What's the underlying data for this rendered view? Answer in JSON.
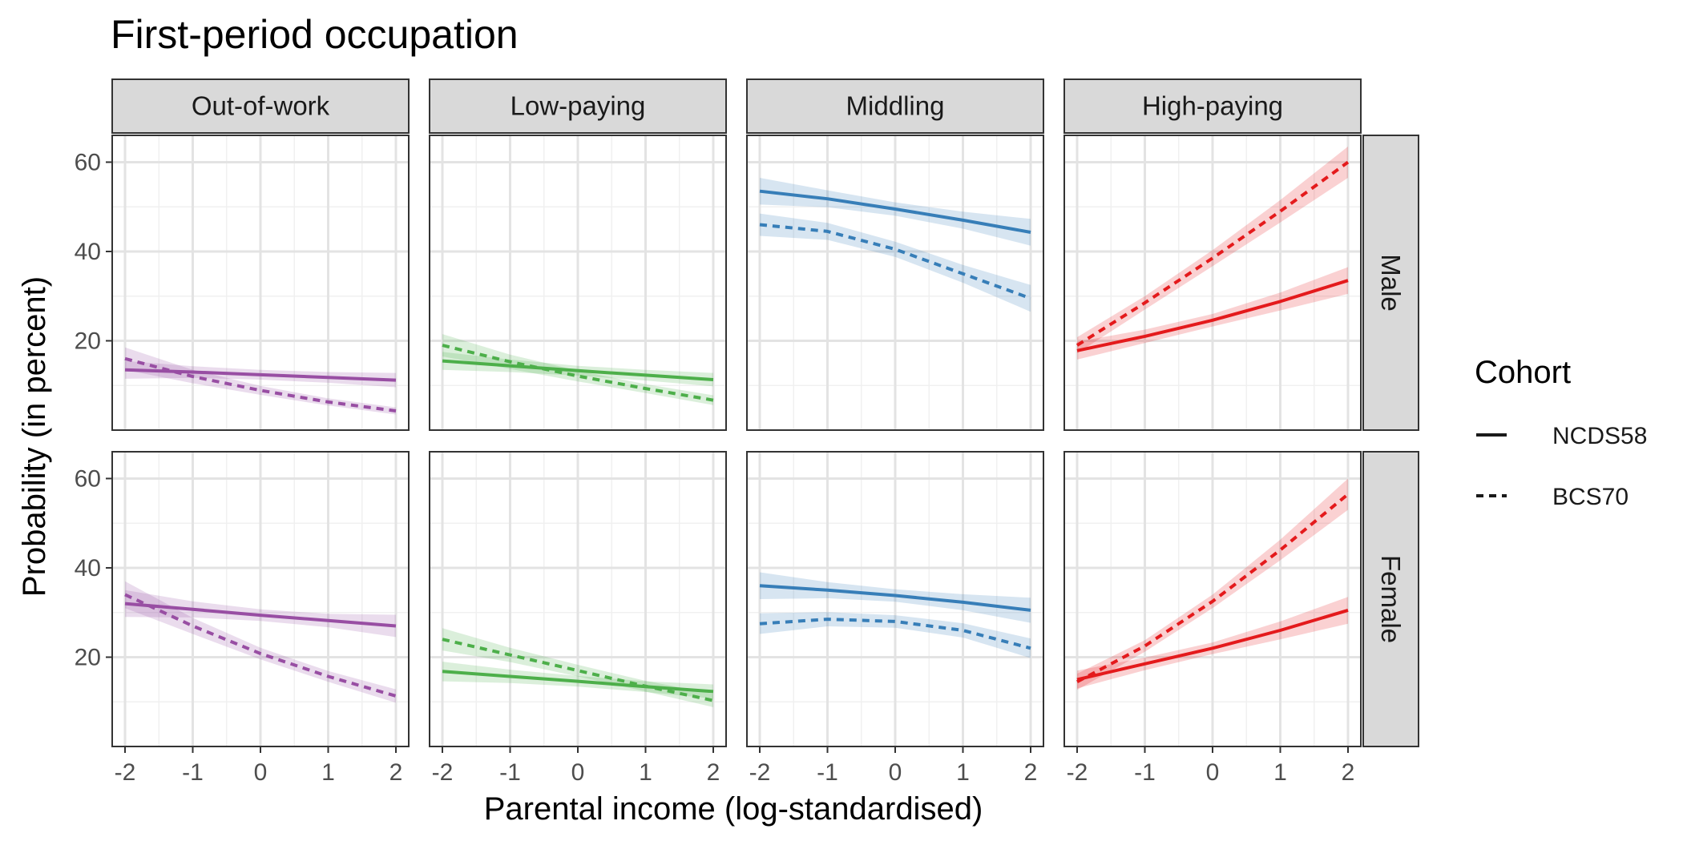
{
  "chart_data": {
    "type": "line",
    "title": "First-period occupation",
    "xlabel": "Parental income (log-standardised)",
    "ylabel": "Probability (in percent)",
    "xlim": [
      -2,
      2
    ],
    "x_ticks": [
      -2,
      -1,
      0,
      1,
      2
    ],
    "ylim": [
      0,
      66
    ],
    "y_ticks": [
      20,
      40,
      60
    ],
    "grid": true,
    "legend": {
      "title": "Cohort",
      "position": "right",
      "entries": [
        {
          "name": "NCDS58",
          "linestyle": "solid"
        },
        {
          "name": "BCS70",
          "linestyle": "dashed"
        }
      ]
    },
    "columns": [
      "Out-of-work",
      "Low-paying",
      "Middling",
      "High-paying"
    ],
    "rows": [
      "Male",
      "Female"
    ],
    "colors": {
      "Out-of-work": "#984ea3",
      "Low-paying": "#4daf4a",
      "Middling": "#377eb8",
      "High-paying": "#e41a1c"
    },
    "x": [
      -2,
      -1,
      0,
      1,
      2
    ],
    "panels": [
      {
        "row": "Male",
        "column": "Out-of-work",
        "series": [
          {
            "name": "NCDS58",
            "values": [
              13.5,
              13.0,
              12.4,
              11.8,
              11.2
            ],
            "ci": [
              2.0,
              1.3,
              1.1,
              1.2,
              1.6
            ]
          },
          {
            "name": "BCS70",
            "values": [
              16.0,
              12.0,
              8.9,
              6.3,
              4.3
            ],
            "ci": [
              2.5,
              1.5,
              1.0,
              0.8,
              0.8
            ]
          }
        ]
      },
      {
        "row": "Male",
        "column": "Low-paying",
        "series": [
          {
            "name": "NCDS58",
            "values": [
              15.5,
              14.4,
              13.3,
              12.3,
              11.3
            ],
            "ci": [
              2.0,
              1.4,
              1.1,
              1.2,
              1.5
            ]
          },
          {
            "name": "BCS70",
            "values": [
              19.0,
              15.3,
              12.1,
              9.3,
              6.7
            ],
            "ci": [
              2.5,
              1.6,
              1.2,
              1.0,
              1.1
            ]
          }
        ]
      },
      {
        "row": "Male",
        "column": "Middling",
        "series": [
          {
            "name": "NCDS58",
            "values": [
              53.5,
              51.8,
              49.5,
              47.0,
              44.3
            ],
            "ci": [
              3.0,
              1.9,
              1.5,
              1.9,
              3.0
            ]
          },
          {
            "name": "BCS70",
            "values": [
              46.0,
              44.5,
              40.5,
              35.0,
              29.5
            ],
            "ci": [
              2.5,
              1.9,
              1.7,
              2.0,
              3.0
            ]
          }
        ]
      },
      {
        "row": "Male",
        "column": "High-paying",
        "series": [
          {
            "name": "NCDS58",
            "values": [
              17.8,
              21.0,
              24.6,
              28.8,
              33.5
            ],
            "ci": [
              2.0,
              1.5,
              1.4,
              2.0,
              3.0
            ]
          },
          {
            "name": "BCS70",
            "values": [
              19.0,
              28.5,
              38.5,
              49.0,
              60.0
            ],
            "ci": [
              1.8,
              1.5,
              1.8,
              2.5,
              3.5
            ]
          }
        ]
      },
      {
        "row": "Female",
        "column": "Out-of-work",
        "series": [
          {
            "name": "NCDS58",
            "values": [
              32.0,
              30.7,
              29.4,
              28.2,
              27.0
            ],
            "ci": [
              3.0,
              1.8,
              1.3,
              1.5,
              2.5
            ]
          },
          {
            "name": "BCS70",
            "values": [
              34.0,
              27.0,
              20.8,
              15.7,
              11.3
            ],
            "ci": [
              3.0,
              1.8,
              1.3,
              1.2,
              1.5
            ]
          }
        ]
      },
      {
        "row": "Female",
        "column": "Low-paying",
        "series": [
          {
            "name": "NCDS58",
            "values": [
              16.8,
              15.7,
              14.6,
              13.4,
              12.3
            ],
            "ci": [
              2.2,
              1.5,
              1.2,
              1.2,
              1.6
            ]
          },
          {
            "name": "BCS70",
            "values": [
              24.0,
              20.5,
              17.0,
              13.5,
              10.3
            ],
            "ci": [
              2.5,
              1.6,
              1.3,
              1.2,
              1.5
            ]
          }
        ]
      },
      {
        "row": "Female",
        "column": "Middling",
        "series": [
          {
            "name": "NCDS58",
            "values": [
              36.0,
              35.0,
              33.8,
              32.3,
              30.5
            ],
            "ci": [
              3.0,
              1.8,
              1.4,
              1.8,
              2.8
            ]
          },
          {
            "name": "BCS70",
            "values": [
              27.5,
              28.5,
              28.0,
              26.0,
              22.0
            ],
            "ci": [
              2.3,
              1.6,
              1.4,
              1.6,
              2.2
            ]
          }
        ]
      },
      {
        "row": "Female",
        "column": "High-paying",
        "series": [
          {
            "name": "NCDS58",
            "values": [
              15.0,
              18.5,
              22.0,
              26.0,
              30.5
            ],
            "ci": [
              2.0,
              1.4,
              1.3,
              2.0,
              3.0
            ]
          },
          {
            "name": "BCS70",
            "values": [
              14.5,
              22.5,
              32.5,
              44.0,
              56.5
            ],
            "ci": [
              1.8,
              1.3,
              1.5,
              2.3,
              3.5
            ]
          }
        ]
      }
    ]
  }
}
